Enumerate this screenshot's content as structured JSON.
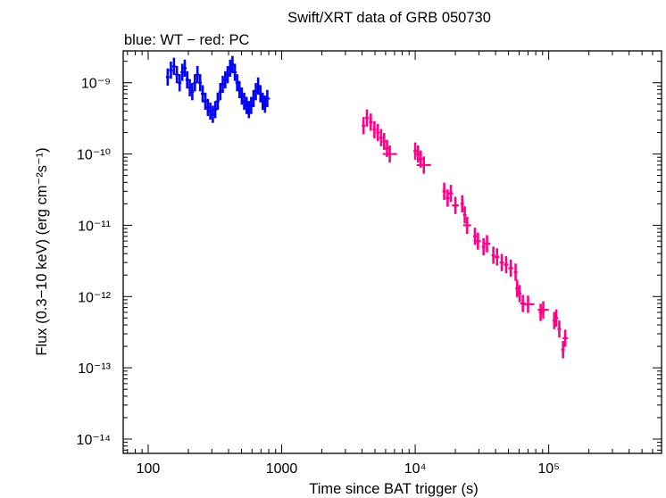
{
  "chart_data": {
    "type": "scatter",
    "title": "Swift/XRT data of GRB 050730",
    "subtitle": "blue: WT − red: PC",
    "xlabel": "Time since BAT trigger (s)",
    "ylabel": "Flux (0.3−10 keV) (erg cm⁻²s⁻¹)",
    "x_scale": "log",
    "y_scale": "log",
    "xlim": [
      65,
      700000
    ],
    "ylim": [
      6.3e-15,
      2.8e-09
    ],
    "x_ticks": [
      {
        "value": 100,
        "label": "100"
      },
      {
        "value": 1000,
        "label": "1000"
      },
      {
        "value": 10000,
        "label": "10⁴"
      },
      {
        "value": 100000,
        "label": "10⁵"
      }
    ],
    "y_ticks": [
      {
        "value": 1e-09,
        "label": "10⁻⁹"
      },
      {
        "value": 1e-10,
        "label": "10⁻¹⁰"
      },
      {
        "value": 1e-11,
        "label": "10⁻¹¹"
      },
      {
        "value": 1e-12,
        "label": "10⁻¹²"
      },
      {
        "value": 1e-13,
        "label": "10⁻¹³"
      },
      {
        "value": 1e-14,
        "label": "10⁻¹⁴"
      }
    ],
    "grid": false,
    "series": [
      {
        "name": "WT",
        "color": "#0000ff",
        "points": [
          [
            140,
            1.2e-09
          ],
          [
            148,
            1.5e-09
          ],
          [
            156,
            1.7e-09
          ],
          [
            164,
            1.3e-09
          ],
          [
            172,
            1e-09
          ],
          [
            180,
            1.4e-09
          ],
          [
            188,
            1.6e-09
          ],
          [
            196,
            1.1e-09
          ],
          [
            205,
            8.5e-10
          ],
          [
            214,
            7.5e-10
          ],
          [
            224,
            1e-09
          ],
          [
            234,
            1.3e-09
          ],
          [
            245,
            1e-09
          ],
          [
            256,
            7e-10
          ],
          [
            268,
            5.5e-10
          ],
          [
            280,
            4.5e-10
          ],
          [
            292,
            4e-10
          ],
          [
            305,
            3.6e-10
          ],
          [
            318,
            4.2e-10
          ],
          [
            332,
            5.5e-10
          ],
          [
            347,
            7.5e-10
          ],
          [
            362,
            9.5e-10
          ],
          [
            378,
            1.1e-09
          ],
          [
            394,
            1.3e-09
          ],
          [
            411,
            1.6e-09
          ],
          [
            428,
            1.8e-09
          ],
          [
            446,
            1.4e-09
          ],
          [
            464,
            1e-09
          ],
          [
            483,
            8e-10
          ],
          [
            503,
            6.5e-10
          ],
          [
            524,
            5.5e-10
          ],
          [
            546,
            4.8e-10
          ],
          [
            568,
            4.2e-10
          ],
          [
            591,
            4.8e-10
          ],
          [
            615,
            6e-10
          ],
          [
            640,
            7.5e-10
          ],
          [
            666,
            9e-10
          ],
          [
            693,
            7e-10
          ],
          [
            721,
            5.5e-10
          ],
          [
            750,
            5e-10
          ],
          [
            780,
            6e-10
          ]
        ]
      },
      {
        "name": "PC",
        "color": "#ff0088",
        "points": [
          [
            4100,
            2.5e-10
          ],
          [
            4350,
            3.2e-10
          ],
          [
            4650,
            2.8e-10
          ],
          [
            4950,
            2.2e-10
          ],
          [
            5250,
            2e-10
          ],
          [
            5550,
            1.7e-10
          ],
          [
            5850,
            1.5e-10
          ],
          [
            6150,
            1.2e-10
          ],
          [
            6450,
            1e-10
          ],
          [
            10000,
            1.1e-10
          ],
          [
            10500,
            1e-10
          ],
          [
            11000,
            8.5e-11
          ],
          [
            11600,
            7e-11
          ],
          [
            16500,
            3e-11
          ],
          [
            17500,
            2.4e-11
          ],
          [
            18500,
            2.8e-11
          ],
          [
            20000,
            1.9e-11
          ],
          [
            22500,
            2e-11
          ],
          [
            23500,
            1.4e-11
          ],
          [
            24500,
            1e-11
          ],
          [
            28000,
            7e-12
          ],
          [
            29500,
            6e-12
          ],
          [
            32500,
            5e-12
          ],
          [
            34500,
            5.5e-12
          ],
          [
            38500,
            3.8e-12
          ],
          [
            41000,
            3.6e-12
          ],
          [
            44500,
            3e-12
          ],
          [
            48000,
            2.8e-12
          ],
          [
            52000,
            2.5e-12
          ],
          [
            56500,
            2.2e-12
          ],
          [
            58000,
            1.3e-12
          ],
          [
            60500,
            1.1e-12
          ],
          [
            64000,
            8e-13
          ],
          [
            70000,
            7.8e-13
          ],
          [
            87000,
            6e-13
          ],
          [
            91000,
            6.5e-13
          ],
          [
            110000,
            4.6e-13
          ],
          [
            114000,
            5e-13
          ],
          [
            120000,
            3.5e-13
          ],
          [
            128000,
            1.8e-13
          ],
          [
            133000,
            2.6e-13
          ]
        ]
      }
    ]
  }
}
